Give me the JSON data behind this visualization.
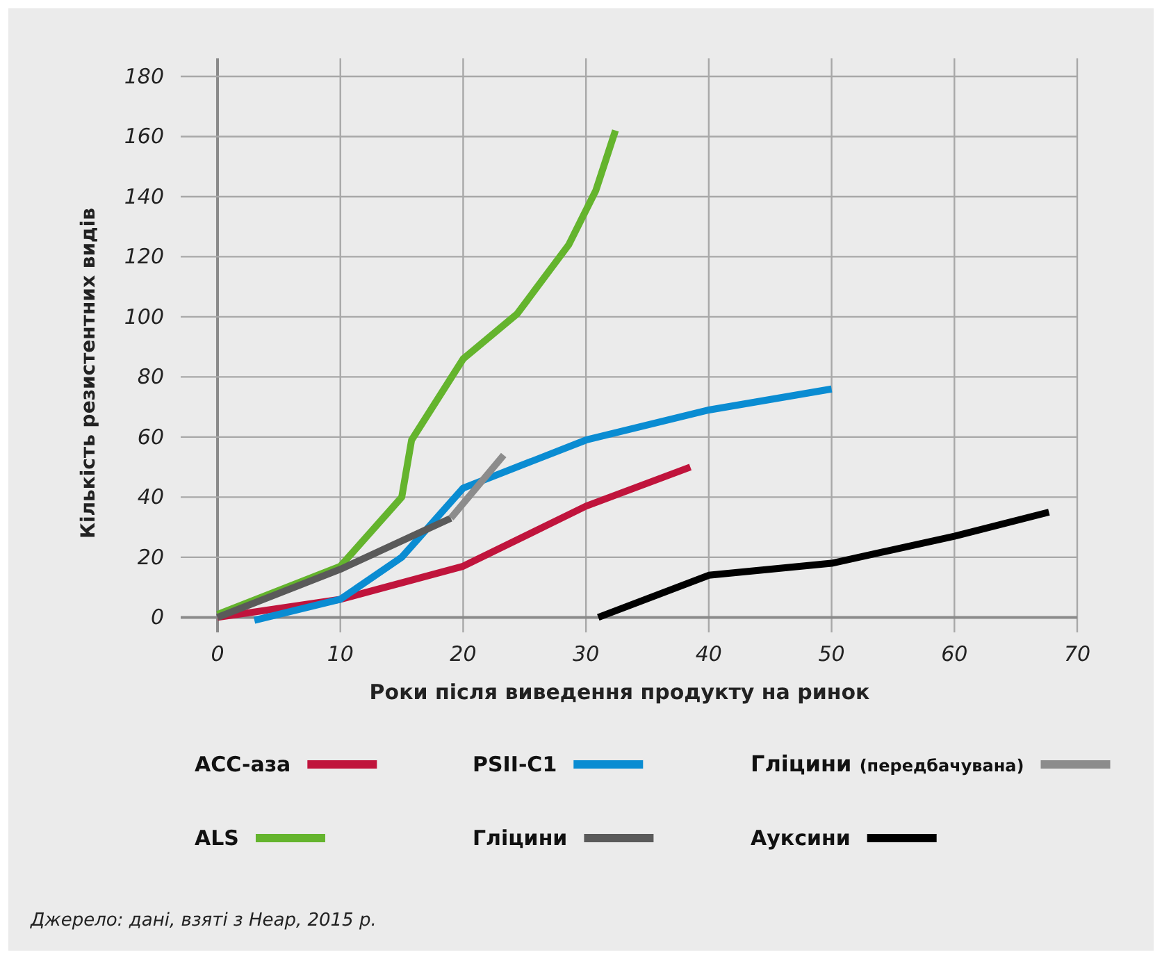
{
  "chart_data": {
    "type": "line",
    "xlabel": "Роки після виведення продукту на ринок",
    "ylabel": "Кількість резистентних видів",
    "xlim": [
      -3,
      70
    ],
    "ylim": [
      -5,
      186
    ],
    "xticks": [
      0,
      10,
      20,
      30,
      40,
      50,
      60,
      70
    ],
    "yticks": [
      0,
      20,
      40,
      60,
      80,
      100,
      120,
      140,
      160,
      180
    ],
    "grid": true,
    "legend": "bottom",
    "line_style": "solid",
    "marker": "none",
    "series": [
      {
        "name": "ACC-аза",
        "color": "#c0143c",
        "x": [
          0,
          10,
          20,
          30,
          38.5
        ],
        "values": [
          0,
          6,
          17,
          37,
          50
        ]
      },
      {
        "name": "ALS",
        "color": "#64b42d",
        "x": [
          0,
          10,
          15,
          15.8,
          20,
          24.4,
          28.6,
          30.8,
          32.4
        ],
        "values": [
          1,
          17,
          40,
          59,
          86,
          101,
          124,
          142,
          162
        ]
      },
      {
        "name": "PSII-C1",
        "color": "#0a8cd2",
        "x": [
          3,
          10,
          15,
          20,
          30,
          40,
          50
        ],
        "values": [
          -1,
          6,
          20,
          43,
          59,
          69,
          76
        ]
      },
      {
        "name": "Гліцини",
        "color": "#5a5a5a",
        "x": [
          0,
          10,
          19
        ],
        "values": [
          0,
          16,
          33
        ]
      },
      {
        "name": "Гліцини (передбачувана)",
        "color": "#8c8c8c",
        "x": [
          19,
          23.3
        ],
        "values": [
          33,
          54
        ]
      },
      {
        "name": "Ауксини",
        "color": "#000000",
        "x": [
          31,
          40,
          50,
          60,
          67.7
        ],
        "values": [
          0,
          14,
          18,
          27,
          35
        ]
      }
    ],
    "annotations": [
      "Джерело: дані, взяті з Heap, 2015 р."
    ]
  }
}
